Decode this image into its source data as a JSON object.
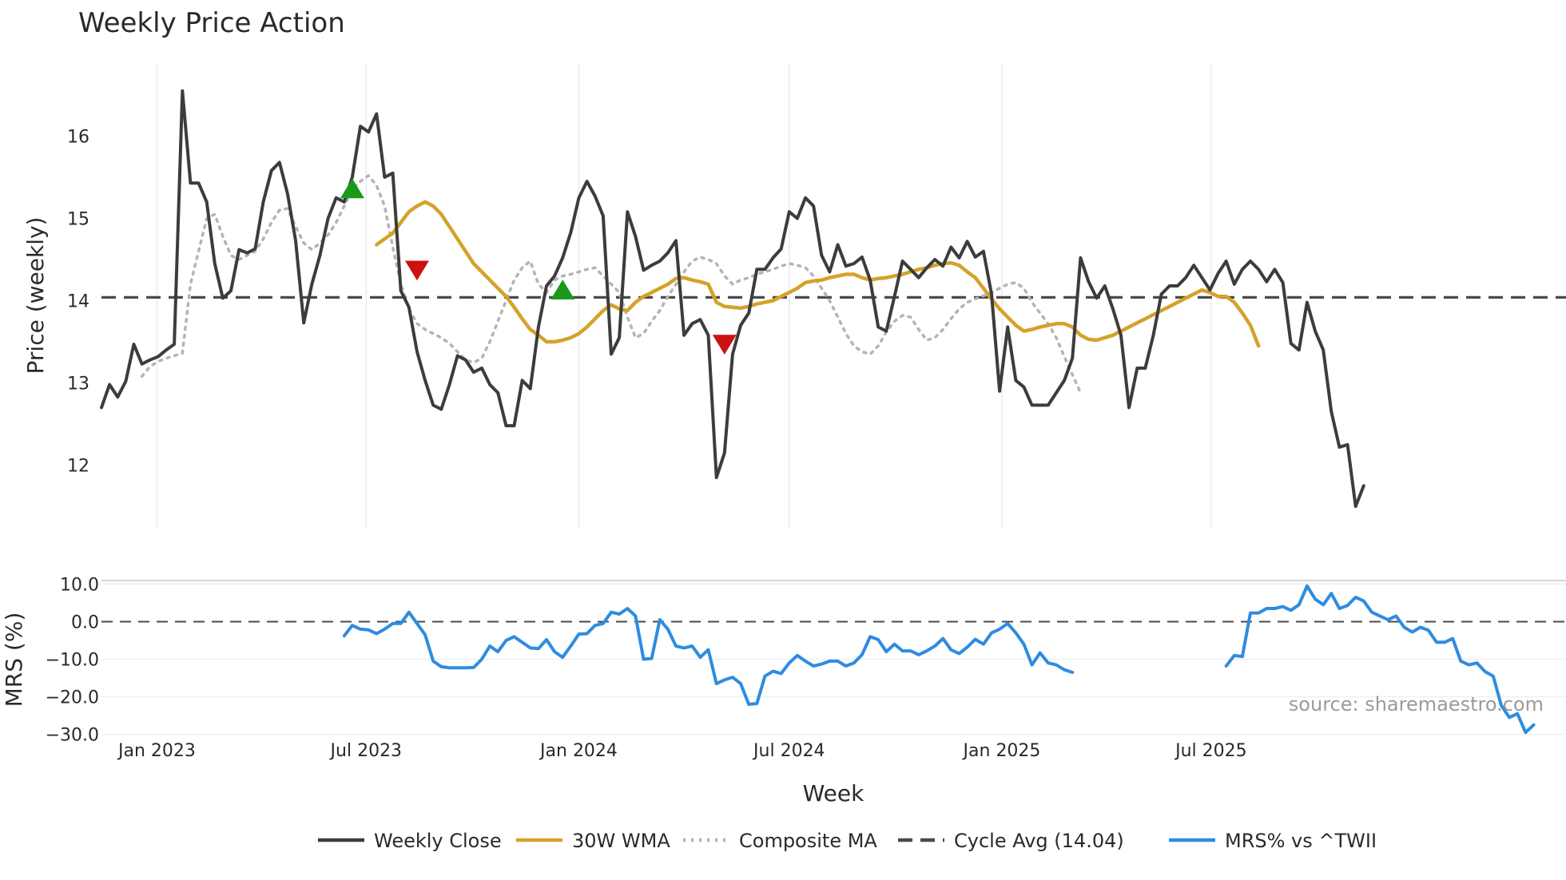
{
  "chart_data": {
    "type": "line",
    "title": "Weekly Price Action",
    "source_text": "source: sharemaestro.com",
    "xlabel": "Week",
    "x_tick_labels": [
      "Jan 2023",
      "Jul 2023",
      "Jan 2024",
      "Jul 2024",
      "Jan 2025",
      "Jul 2025"
    ],
    "x_start": "2022-11-14",
    "x_step_days": 7,
    "x_range_weeks": [
      0,
      181
    ],
    "price_panel": {
      "ylabel": "Price (weekly)",
      "ylim": [
        11.2,
        16.8
      ],
      "yticks": [
        12,
        13,
        14,
        15,
        16
      ],
      "cycle_avg": 14.04,
      "series": [
        {
          "name": "Weekly Close",
          "color": "#3c3c3c",
          "style": "solid",
          "offset": 0,
          "values": [
            12.7,
            12.98,
            12.83,
            13.02,
            13.47,
            13.23,
            13.28,
            13.32,
            13.4,
            13.47,
            16.55,
            15.43,
            15.43,
            15.2,
            14.45,
            14.03,
            14.12,
            14.62,
            14.58,
            14.63,
            15.2,
            15.58,
            15.68,
            15.3,
            14.73,
            13.73,
            14.2,
            14.55,
            15.0,
            15.25,
            15.2,
            15.5,
            16.12,
            16.05,
            16.27,
            15.5,
            15.55,
            14.12,
            13.92,
            13.38,
            13.03,
            12.73,
            12.68,
            12.98,
            13.33,
            13.28,
            13.13,
            13.18,
            12.98,
            12.88,
            12.48,
            12.48,
            13.03,
            12.93,
            13.68,
            14.18,
            14.3,
            14.52,
            14.83,
            15.25,
            15.45,
            15.27,
            15.03,
            13.35,
            13.55,
            15.08,
            14.78,
            14.37,
            14.43,
            14.48,
            14.58,
            14.73,
            13.58,
            13.72,
            13.77,
            13.58,
            11.85,
            12.15,
            13.35,
            13.7,
            13.85,
            14.38,
            14.38,
            14.52,
            14.63,
            15.08,
            15.0,
            15.25,
            15.15,
            14.55,
            14.35,
            14.68,
            14.42,
            14.45,
            14.53,
            14.25,
            13.68,
            13.63,
            14.05,
            14.48,
            14.38,
            14.28,
            14.4,
            14.5,
            14.42,
            14.65,
            14.52,
            14.72,
            14.53,
            14.6,
            14.08,
            12.9,
            13.68,
            13.03,
            12.95,
            12.73,
            12.73,
            12.73,
            12.88,
            13.03,
            13.3,
            14.52,
            14.23,
            14.03,
            14.18,
            13.9,
            13.58,
            12.7,
            13.18,
            13.18,
            13.58,
            14.08,
            14.18,
            14.18,
            14.28,
            14.43,
            14.28,
            14.13,
            14.33,
            14.48,
            14.2,
            14.38,
            14.48,
            14.38,
            14.23,
            14.38,
            14.22,
            13.48,
            13.4,
            13.98,
            13.63,
            13.4,
            12.65,
            12.22,
            12.25,
            11.5,
            11.75
          ]
        },
        {
          "name": "30W WMA",
          "color": "#d4a22a",
          "style": "solid",
          "offset": 34,
          "values": [
            14.68,
            14.75,
            14.82,
            14.95,
            15.08,
            15.15,
            15.2,
            15.15,
            15.05,
            14.9,
            14.75,
            14.6,
            14.45,
            14.35,
            14.25,
            14.15,
            14.05,
            13.92,
            13.78,
            13.65,
            13.58,
            13.5,
            13.5,
            13.52,
            13.55,
            13.6,
            13.68,
            13.78,
            13.88,
            13.95,
            13.9,
            13.88,
            13.98,
            14.05,
            14.1,
            14.15,
            14.2,
            14.27,
            14.28,
            14.25,
            14.23,
            14.2,
            13.98,
            13.93,
            13.92,
            13.91,
            13.93,
            13.96,
            13.98,
            14.0,
            14.05,
            14.1,
            14.15,
            14.22,
            14.24,
            14.25,
            14.28,
            14.3,
            14.32,
            14.32,
            14.28,
            14.25,
            14.27,
            14.28,
            14.3,
            14.32,
            14.35,
            14.38,
            14.4,
            14.43,
            14.45,
            14.46,
            14.43,
            14.35,
            14.28,
            14.15,
            14.02,
            13.9,
            13.8,
            13.7,
            13.63,
            13.65,
            13.68,
            13.7,
            13.72,
            13.72,
            13.68,
            13.58,
            13.53,
            13.52,
            13.55,
            13.58,
            13.63,
            13.68,
            13.73,
            13.78,
            13.83,
            13.88,
            13.93,
            13.98,
            14.03,
            14.08,
            14.13,
            14.1,
            14.05,
            14.05,
            13.98,
            13.85,
            13.7,
            13.45
          ]
        },
        {
          "name": "Composite MA",
          "color": "#b4b4b4",
          "style": "dotted",
          "offset": 5,
          "values": [
            13.08,
            13.2,
            13.26,
            13.3,
            13.33,
            13.36,
            14.2,
            14.6,
            15.0,
            15.05,
            14.78,
            14.55,
            14.5,
            14.55,
            14.6,
            14.75,
            14.95,
            15.1,
            15.12,
            14.9,
            14.7,
            14.62,
            14.7,
            14.8,
            14.95,
            15.15,
            15.35,
            15.45,
            15.52,
            15.4,
            15.15,
            14.65,
            14.2,
            13.9,
            13.72,
            13.65,
            13.6,
            13.55,
            13.48,
            13.38,
            13.28,
            13.25,
            13.3,
            13.5,
            13.75,
            14.0,
            14.25,
            14.4,
            14.48,
            14.2,
            14.1,
            14.25,
            14.3,
            14.32,
            14.35,
            14.38,
            14.4,
            14.3,
            14.2,
            14.1,
            13.8,
            13.55,
            13.6,
            13.75,
            13.88,
            14.05,
            14.2,
            14.35,
            14.48,
            14.53,
            14.5,
            14.45,
            14.3,
            14.2,
            14.25,
            14.28,
            14.32,
            14.35,
            14.38,
            14.42,
            14.45,
            14.43,
            14.4,
            14.3,
            14.15,
            14.0,
            13.8,
            13.6,
            13.45,
            13.38,
            13.35,
            13.45,
            13.62,
            13.75,
            13.82,
            13.8,
            13.65,
            13.52,
            13.55,
            13.65,
            13.78,
            13.9,
            13.98,
            14.02,
            14.06,
            14.1,
            14.15,
            14.2,
            14.22,
            14.15,
            13.98,
            13.85,
            13.72,
            13.55,
            13.32,
            13.1,
            12.88
          ]
        }
      ],
      "signals": [
        {
          "type": "buy",
          "week": 31,
          "value": 15.33,
          "color": "#1a9a1a"
        },
        {
          "type": "sell",
          "week": 39,
          "value": 14.4,
          "color": "#cc1111"
        },
        {
          "type": "buy",
          "week": 57,
          "value": 14.1,
          "color": "#1a9a1a"
        },
        {
          "type": "sell",
          "week": 77,
          "value": 13.5,
          "color": "#cc1111"
        }
      ]
    },
    "mrs_panel": {
      "ylabel": "MRS (%)",
      "ylim": [
        -32,
        12
      ],
      "yticks": [
        10.0,
        0.0,
        -10.0,
        -20.0,
        -30.0
      ],
      "ytick_labels": [
        "10.0",
        "0.0",
        "−10.0",
        "−20.0",
        "−30.0"
      ],
      "series": [
        {
          "name": "MRS% vs ^TWII",
          "color": "#2e8ce0",
          "style": "solid",
          "segments": [
            {
              "start_week": 30,
              "values": [
                -3.8,
                -1.0,
                -2.0,
                -2.2,
                -3.2,
                -2.0,
                -0.5,
                -0.5,
                2.5,
                -0.5,
                -3.5,
                -10.5,
                -12.0,
                -12.3,
                -12.3,
                -12.3,
                -12.2,
                -10.0,
                -6.5,
                -8.0,
                -5.0,
                -4.0,
                -5.5,
                -7.0,
                -7.2,
                -4.8,
                -8.0,
                -9.5,
                -6.5,
                -3.3,
                -3.2,
                -1.0,
                -0.5,
                2.5,
                2.0,
                3.5,
                1.5,
                -10.0,
                -9.8,
                0.5,
                -2.0,
                -6.5,
                -7.0,
                -6.5,
                -9.5,
                -7.5,
                -16.5,
                -15.5,
                -14.8,
                -16.5,
                -22.0,
                -21.8,
                -14.5,
                -13.2,
                -13.8,
                -11.0,
                -9.0,
                -10.5,
                -11.8,
                -11.3,
                -10.5,
                -10.5,
                -11.8,
                -11.0,
                -8.8,
                -4.0,
                -4.8,
                -8.0,
                -6.0,
                -7.8,
                -7.8,
                -8.8,
                -7.8,
                -6.5,
                -4.5,
                -7.5,
                -8.5,
                -6.8,
                -4.7,
                -6.0,
                -3.0,
                -2.0,
                -0.5,
                -3.0,
                -6.0,
                -11.5,
                -8.3,
                -11.0,
                -11.5,
                -12.8,
                -13.5
              ]
            },
            {
              "start_week": 139,
              "values": [
                -11.8,
                -9.0,
                -9.3,
                2.3,
                2.3,
                3.5,
                3.5,
                4.0,
                3.0,
                4.5,
                9.5,
                6.0,
                4.5,
                7.5,
                3.5,
                4.3,
                6.5,
                5.5,
                2.5,
                1.5,
                0.5,
                1.5,
                -1.5,
                -2.8,
                -1.5,
                -2.3,
                -5.5,
                -5.5,
                -4.5,
                -10.5,
                -11.5,
                -11.0,
                -13.3,
                -14.5,
                -22.3,
                -25.5,
                -24.5,
                -29.5,
                -27.5
              ]
            }
          ]
        }
      ]
    },
    "legend": [
      {
        "label": "Weekly Close",
        "color": "#3c3c3c",
        "style": "solid"
      },
      {
        "label": "30W WMA",
        "color": "#d4a22a",
        "style": "solid"
      },
      {
        "label": "Composite MA",
        "color": "#b4b4b4",
        "style": "dotted"
      },
      {
        "label": "Cycle Avg (14.04)",
        "color": "#4a4a4a",
        "style": "dashed"
      },
      {
        "label": "MRS% vs ^TWII",
        "color": "#2e8ce0",
        "style": "solid"
      }
    ]
  }
}
